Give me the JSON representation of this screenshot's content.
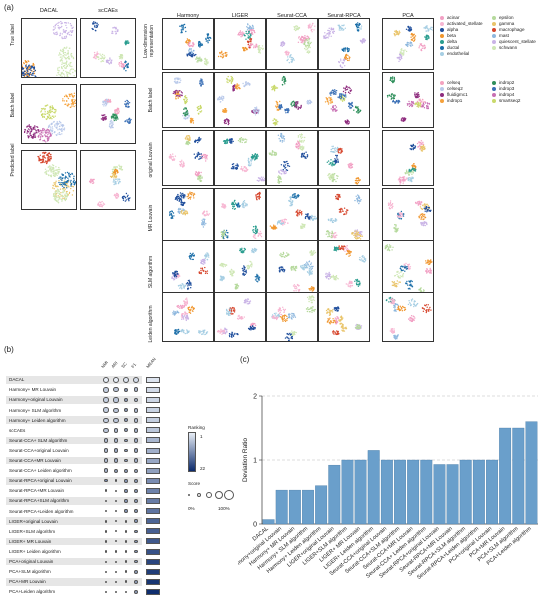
{
  "panel_a": {
    "label": "(a)",
    "left_columns": [
      "DACAL",
      "scCAEs"
    ],
    "left_rows": [
      "True label",
      "Batch label",
      "Predicted label"
    ],
    "right_columns": [
      "Harmony",
      "LIGER",
      "Seurat-CCA",
      "Seurat-RPCA",
      "PCA"
    ],
    "right_rows": [
      "Low-dimension representation",
      "Batch label",
      "original Louvain",
      "MR Louvain",
      "SLM algorithm",
      "Leiden algorithm"
    ],
    "celltype_legend": [
      {
        "label": "acinar",
        "color": "#f2a0c4"
      },
      {
        "label": "activated_stellate",
        "color": "#f7b6d2"
      },
      {
        "label": "alpha",
        "color": "#1f4e9c"
      },
      {
        "label": "beta",
        "color": "#f0962e"
      },
      {
        "label": "delta",
        "color": "#2a9d8f"
      },
      {
        "label": "ductal",
        "color": "#1b6ea8"
      },
      {
        "label": "endothelial",
        "color": "#a6cee3"
      },
      {
        "label": "epsilon",
        "color": "#b5d99c"
      },
      {
        "label": "gamma",
        "color": "#e9c46a"
      },
      {
        "label": "macrophage",
        "color": "#d6452c"
      },
      {
        "label": "mast",
        "color": "#8fb8de"
      },
      {
        "label": "quiescent_stellate",
        "color": "#c9b3e6"
      },
      {
        "label": "schwann",
        "color": "#cfe7b5"
      }
    ],
    "batch_legend": [
      {
        "label": "celseq",
        "color": "#f4a3c0"
      },
      {
        "label": "celseq2",
        "color": "#b9c9ea"
      },
      {
        "label": "fluidigmc1",
        "color": "#8e2c7e"
      },
      {
        "label": "indrop1",
        "color": "#f5a13a"
      },
      {
        "label": "indrop2",
        "color": "#2f8f5b"
      },
      {
        "label": "indrop3",
        "color": "#3a6fb5"
      },
      {
        "label": "indrop4",
        "color": "#c86fb3"
      },
      {
        "label": "smartseq2",
        "color": "#c9d96b"
      }
    ]
  },
  "panel_b": {
    "label": "(b)",
    "metric_headers": [
      "NMI",
      "ARI",
      "SC",
      "F1",
      "MEAN"
    ],
    "methods": [
      {
        "name": "DACAL",
        "scores": [
          1.0,
          1.0,
          0.95,
          0.9
        ],
        "mean": 0.05
      },
      {
        "name": "Harmony+ MR Louvain",
        "scores": [
          0.8,
          0.75,
          0.5,
          0.7
        ],
        "mean": 0.1
      },
      {
        "name": "Harmony+original Louvain",
        "scores": [
          0.8,
          0.75,
          0.5,
          0.7
        ],
        "mean": 0.12
      },
      {
        "name": "Harmony+ SLM algorithm",
        "scores": [
          0.8,
          0.75,
          0.5,
          0.7
        ],
        "mean": 0.14
      },
      {
        "name": "Harmony+ Leiden algorithm",
        "scores": [
          0.8,
          0.75,
          0.5,
          0.7
        ],
        "mean": 0.16
      },
      {
        "name": "scCAEs",
        "scores": [
          0.75,
          0.7,
          0.55,
          0.65
        ],
        "mean": 0.2
      },
      {
        "name": "Seurat-CCA+ SLM algorithm",
        "scores": [
          0.7,
          0.65,
          0.5,
          0.6
        ],
        "mean": 0.28
      },
      {
        "name": "Seurat-CCA+original Louvain",
        "scores": [
          0.7,
          0.6,
          0.5,
          0.6
        ],
        "mean": 0.32
      },
      {
        "name": "Seurat-CCA+MR Louvain",
        "scores": [
          0.7,
          0.6,
          0.5,
          0.6
        ],
        "mean": 0.36
      },
      {
        "name": "Seurat-CCA+ Leiden algorithm",
        "scores": [
          0.65,
          0.55,
          0.5,
          0.6
        ],
        "mean": 0.4
      },
      {
        "name": "Seurat-RPCA+original Louvain",
        "scores": [
          0.4,
          0.3,
          0.45,
          0.5
        ],
        "mean": 0.5
      },
      {
        "name": "Seurat-RPCA+MR Louvain",
        "scores": [
          0.35,
          0.25,
          0.45,
          0.5
        ],
        "mean": 0.55
      },
      {
        "name": "Seurat-RPCA+SLM algorithm",
        "scores": [
          0.35,
          0.25,
          0.45,
          0.5
        ],
        "mean": 0.58
      },
      {
        "name": "Seurat-RPCA+Leiden algorithm",
        "scores": [
          0.3,
          0.2,
          0.45,
          0.5
        ],
        "mean": 0.62
      },
      {
        "name": "LIGER+original Louvain",
        "scores": [
          0.3,
          0.2,
          0.35,
          0.45
        ],
        "mean": 0.7
      },
      {
        "name": "LIGER+SLM algorithm",
        "scores": [
          0.3,
          0.2,
          0.35,
          0.45
        ],
        "mean": 0.73
      },
      {
        "name": "LIGER+ MR Louvain",
        "scores": [
          0.3,
          0.2,
          0.35,
          0.45
        ],
        "mean": 0.76
      },
      {
        "name": "LIGER+ Leiden algorithm",
        "scores": [
          0.3,
          0.2,
          0.35,
          0.45
        ],
        "mean": 0.8
      },
      {
        "name": "PCA+original Louvain",
        "scores": [
          0.2,
          0.15,
          0.3,
          0.5
        ],
        "mean": 0.86
      },
      {
        "name": "PCA+SLM algorithm",
        "scores": [
          0.2,
          0.15,
          0.3,
          0.5
        ],
        "mean": 0.9
      },
      {
        "name": "PCA+MR Louvain",
        "scores": [
          0.2,
          0.15,
          0.3,
          0.5
        ],
        "mean": 0.94
      },
      {
        "name": "PCA+Leiden algorithm",
        "scores": [
          0.2,
          0.15,
          0.3,
          0.5
        ],
        "mean": 0.98
      }
    ],
    "ranking_title": "Ranking",
    "ranking_ticks": [
      "1",
      "22"
    ],
    "score_title": "Score",
    "score_ticks": [
      "0%",
      "100%"
    ],
    "colors": {
      "light": "#e8eef6",
      "dark": "#0b2a6b",
      "stripe": "#e6e6e6"
    }
  },
  "chart_data": {
    "label": "(c)",
    "type": "bar",
    "ylabel": "Deviation Ratio",
    "ylim": [
      0,
      2
    ],
    "yticks": [
      "0",
      "1",
      "2"
    ],
    "grid": true,
    "bar_color": "#6a9fcb",
    "categories": [
      "DACAL",
      "Harmony+original Louvain",
      "Harmony+ MR Louvain",
      "Harmony+ SLM algorithm",
      "Harmony+ Leiden algorithm",
      "LIGER+original Louvain",
      "LIGER+SLM algorithm",
      "LIGER+ MR Louvain",
      "LIGER+ Leiden algorithm",
      "Seurat-CCA+original Louvain",
      "Seurat-CCA+SLM algorithm",
      "Seurat-CCA+MR Louvain",
      "Seurat-CCA+ Leiden algorithm",
      "Seurat-RPCA+original Louvain",
      "Seurat-RPCA+MR Louvain",
      "Seurat-RPCA+SLM algorithm",
      "Seurat-RPCA+Leiden algorithm",
      "PCA+original Louvain",
      "PCA+MR Louvain",
      "PCA+SLM algorithm",
      "PCA+Leiden algorithm"
    ],
    "values": [
      0.07,
      0.53,
      0.53,
      0.53,
      0.6,
      0.92,
      1.0,
      1.0,
      1.15,
      1.0,
      1.0,
      1.0,
      1.0,
      0.93,
      0.93,
      1.0,
      1.0,
      1.0,
      1.5,
      1.5,
      1.6
    ]
  }
}
